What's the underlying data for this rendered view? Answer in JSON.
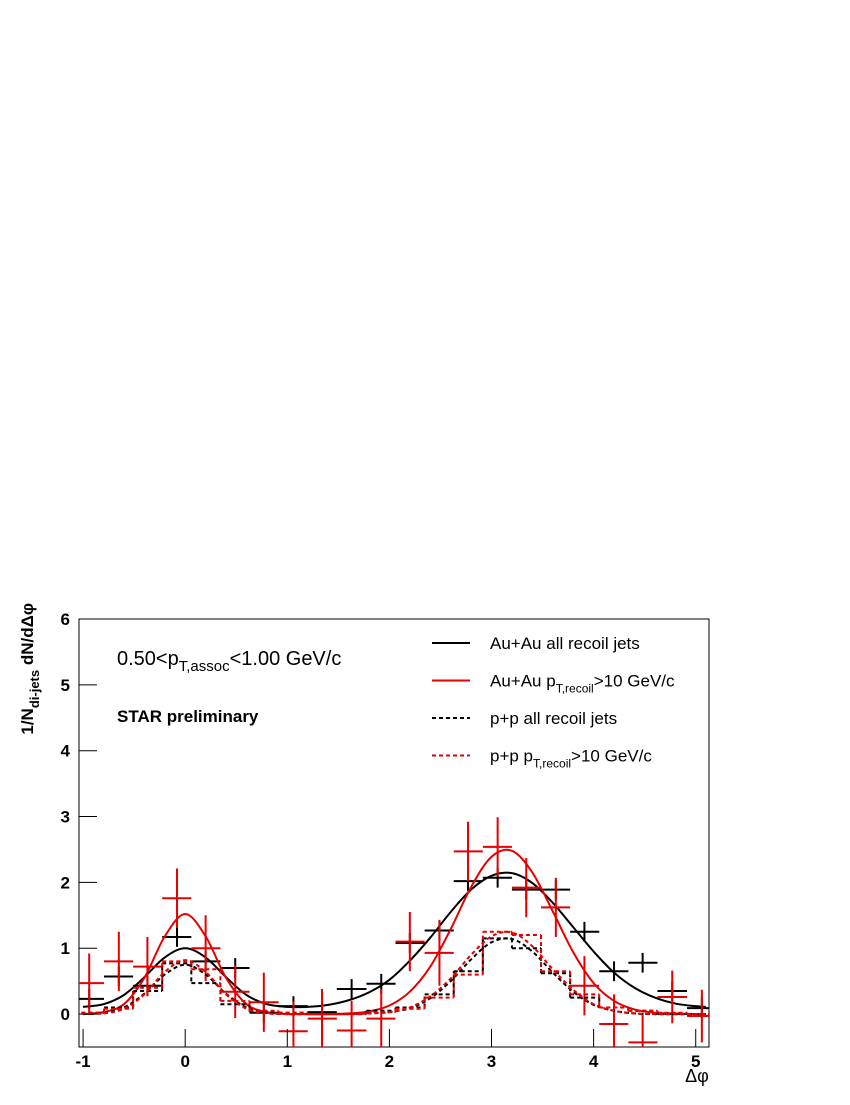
{
  "chart_data": {
    "type": "combo",
    "xlabel": "Δφ",
    "ylabel": [
      "1/N",
      "di-jets",
      " dN/dΔφ"
    ],
    "annotations": [
      [
        "0.50<p",
        "T,assoc",
        "<1.00 GeV/c"
      ],
      [
        "STAR preliminary"
      ]
    ],
    "xlim": [
      -1.04,
      5.13
    ],
    "ylim": [
      -0.5,
      6
    ],
    "xticks": [
      -1,
      0,
      1,
      2,
      3,
      4,
      5
    ],
    "yticks": [
      0,
      1,
      2,
      3,
      4,
      5,
      6
    ],
    "legend": "top-right",
    "x": [
      -0.94,
      -0.65,
      -0.37,
      -0.08,
      0.2,
      0.49,
      0.77,
      1.06,
      1.34,
      1.63,
      1.92,
      2.2,
      2.49,
      2.77,
      3.06,
      3.34,
      3.63,
      3.91,
      4.2,
      4.48,
      4.77,
      5.06
    ],
    "curve_x": [
      -1,
      -0.8,
      -0.6,
      -0.4,
      -0.2,
      0,
      0.2,
      0.4,
      0.6,
      0.8,
      1,
      1.2,
      1.4,
      1.6,
      1.8,
      2,
      2.2,
      2.4,
      2.6,
      2.8,
      3,
      3.2,
      3.4,
      3.6,
      3.8,
      4,
      4.2,
      4.4,
      4.6,
      4.8,
      5,
      5.1
    ],
    "series": [
      {
        "name": [
          "Au+Au all recoil jets"
        ],
        "color": "#000000",
        "dashed": false,
        "style": "points",
        "values": [
          0.23,
          0.57,
          0.43,
          1.17,
          0.8,
          0.7,
          0.02,
          0.12,
          0.03,
          0.38,
          0.46,
          1.08,
          1.27,
          2.02,
          2.07,
          1.89,
          1.89,
          1.25,
          0.65,
          0.78,
          0.35,
          0.09
        ],
        "errors": [
          0.15,
          0.15,
          0.15,
          0.15,
          0.15,
          0.15,
          0.15,
          0.15,
          0.15,
          0.15,
          0.15,
          0.15,
          0.15,
          0.15,
          0.15,
          0.15,
          0.15,
          0.15,
          0.15,
          0.15,
          0.15,
          0.15
        ],
        "curve": [
          0.11,
          0.15,
          0.29,
          0.56,
          0.86,
          1.0,
          0.86,
          0.56,
          0.29,
          0.15,
          0.11,
          0.11,
          0.14,
          0.21,
          0.33,
          0.52,
          0.81,
          1.16,
          1.55,
          1.89,
          2.1,
          2.14,
          1.99,
          1.69,
          1.32,
          0.95,
          0.63,
          0.4,
          0.25,
          0.16,
          0.12,
          0.11
        ]
      },
      {
        "name": [
          "Au+Au p",
          "T,recoil",
          ">10 GeV/c"
        ],
        "color": "#e60000",
        "dashed": false,
        "style": "points",
        "values": [
          0.47,
          0.8,
          0.72,
          1.76,
          1.0,
          0.34,
          0.18,
          -0.26,
          -0.07,
          -0.25,
          -0.07,
          1.1,
          0.93,
          2.47,
          2.54,
          1.92,
          1.62,
          0.43,
          -0.15,
          -0.43,
          0.26,
          -0.03
        ],
        "errors": [
          0.45,
          0.45,
          0.45,
          0.45,
          0.5,
          0.4,
          0.45,
          0.45,
          0.45,
          0.45,
          0.45,
          0.45,
          0.5,
          0.45,
          0.45,
          0.45,
          0.45,
          0.45,
          0.45,
          0.45,
          0.4,
          0.4
        ],
        "curve": [
          0,
          0.03,
          0.15,
          0.55,
          1.18,
          1.52,
          1.18,
          0.55,
          0.15,
          0.03,
          0,
          0,
          0,
          0.01,
          0.04,
          0.13,
          0.34,
          0.72,
          1.29,
          1.93,
          2.39,
          2.48,
          2.15,
          1.56,
          0.94,
          0.47,
          0.2,
          0.07,
          0.02,
          0.01,
          0,
          0
        ]
      },
      {
        "name": [
          "p+p all recoil jets"
        ],
        "color": "#000000",
        "dashed": true,
        "style": "histogram",
        "values": [
          0.02,
          0.1,
          0.35,
          0.77,
          0.47,
          0.15,
          0.03,
          0.02,
          0,
          0,
          0.05,
          0.1,
          0.3,
          0.65,
          1.15,
          1.0,
          0.62,
          0.25,
          0.1,
          0.05,
          0,
          0
        ],
        "curve": [
          0,
          0.02,
          0.1,
          0.31,
          0.6,
          0.75,
          0.6,
          0.31,
          0.1,
          0.02,
          0,
          0,
          0,
          0,
          0.01,
          0.03,
          0.09,
          0.24,
          0.5,
          0.83,
          1.09,
          1.14,
          0.95,
          0.63,
          0.34,
          0.14,
          0.05,
          0.01,
          0,
          0,
          0,
          0
        ]
      },
      {
        "name": [
          "p+p p",
          "T,recoil",
          ">10 GeV/c"
        ],
        "color": "#e60000",
        "dashed": true,
        "style": "histogram",
        "values": [
          0.02,
          0.08,
          0.4,
          0.8,
          0.68,
          0.2,
          0.05,
          0.02,
          0,
          0,
          0.03,
          0.08,
          0.25,
          0.6,
          1.25,
          1.2,
          0.65,
          0.3,
          0.1,
          0.05,
          0.02,
          0
        ],
        "curve": [
          0,
          0.01,
          0.08,
          0.3,
          0.64,
          0.82,
          0.64,
          0.3,
          0.08,
          0.01,
          0,
          0,
          0,
          0,
          0.01,
          0.03,
          0.1,
          0.27,
          0.54,
          0.9,
          1.18,
          1.24,
          1.03,
          0.68,
          0.37,
          0.15,
          0.05,
          0.01,
          0,
          0,
          0,
          0
        ]
      }
    ]
  }
}
